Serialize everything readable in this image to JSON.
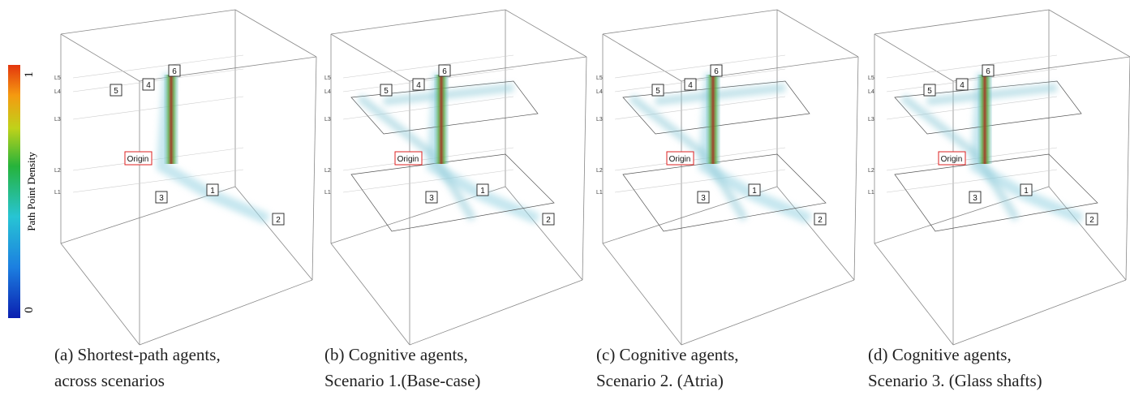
{
  "colorbar": {
    "label": "Path Point Density",
    "min": "0",
    "max": "1"
  },
  "panels": [
    {
      "caption": [
        "(a) Shortest-path agents,",
        "across scenarios"
      ],
      "origin": "Origin",
      "markers": [
        "1",
        "2",
        "3",
        "4",
        "5",
        "6"
      ],
      "levels": [
        "L1",
        "L2",
        "L3",
        "L4",
        "L5"
      ]
    },
    {
      "caption": [
        "(b) Cognitive agents,",
        "Scenario 1.(Base-case)"
      ],
      "origin": "Origin",
      "markers": [
        "1",
        "2",
        "3",
        "4",
        "5",
        "6"
      ],
      "levels": [
        "L1",
        "L2",
        "L3",
        "L4",
        "L5"
      ]
    },
    {
      "caption": [
        "(c) Cognitive agents,",
        "Scenario 2. (Atria)"
      ],
      "origin": "Origin",
      "markers": [
        "1",
        "2",
        "3",
        "4",
        "5",
        "6"
      ],
      "levels": [
        "L1",
        "L2",
        "L3",
        "L4",
        "L5"
      ]
    },
    {
      "caption": [
        "(d) Cognitive agents,",
        "Scenario 3. (Glass shafts)"
      ],
      "origin": "Origin",
      "markers": [
        "1",
        "2",
        "3",
        "4",
        "5",
        "6"
      ],
      "levels": [
        "L1",
        "L2",
        "L3",
        "L4",
        "L5"
      ]
    }
  ]
}
